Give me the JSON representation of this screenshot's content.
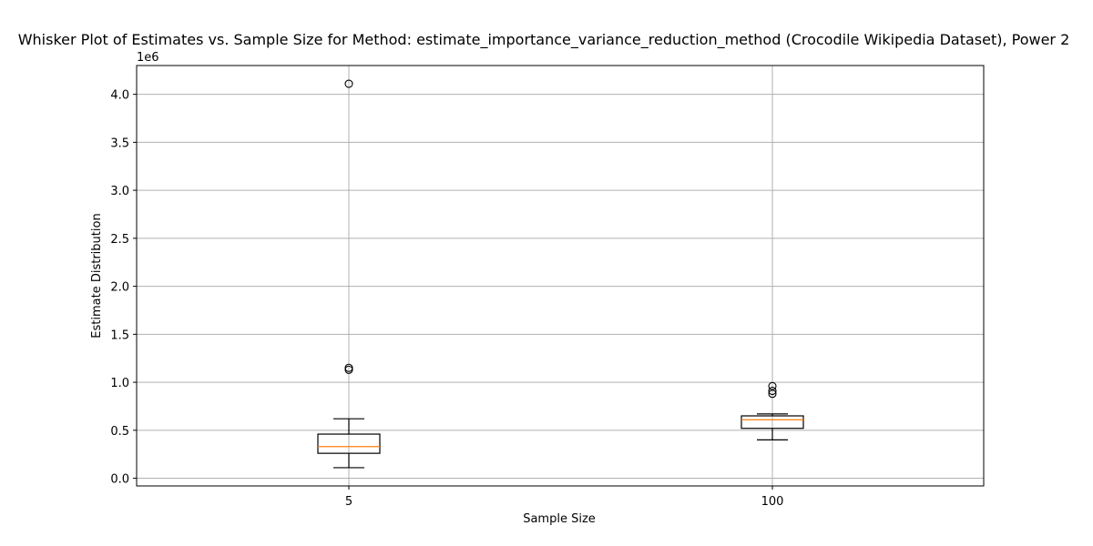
{
  "chart_data": {
    "type": "box",
    "title": "Whisker Plot of Estimates vs. Sample Size for Method: estimate_importance_variance_reduction_method (Crocodile Wikipedia Dataset), Power 2",
    "xlabel": "Sample Size",
    "ylabel": "Estimate Distribution",
    "y_offset_label": "1e6",
    "categories": [
      "5",
      "100"
    ],
    "y_ticks": [
      0.0,
      0.5,
      1.0,
      1.5,
      2.0,
      2.5,
      3.0,
      3.5,
      4.0
    ],
    "y_tick_labels": [
      "0.0",
      "0.5",
      "1.0",
      "1.5",
      "2.0",
      "2.5",
      "3.0",
      "3.5",
      "4.0"
    ],
    "ylim": [
      -0.08,
      4.3
    ],
    "grid": true,
    "colors": {
      "box_edge": "#000000",
      "median": "#ff7f0e",
      "grid": "#b0b0b0",
      "axes": "#000000"
    },
    "boxes": [
      {
        "category": "5",
        "whisker_low": 0.11,
        "q1": 0.26,
        "median": 0.33,
        "q3": 0.46,
        "whisker_high": 0.62,
        "outliers": [
          4.11,
          1.15,
          1.13
        ]
      },
      {
        "category": "100",
        "whisker_low": 0.4,
        "q1": 0.52,
        "median": 0.61,
        "q3": 0.65,
        "whisker_high": 0.67,
        "outliers": [
          0.96,
          0.91,
          0.88
        ]
      }
    ]
  }
}
